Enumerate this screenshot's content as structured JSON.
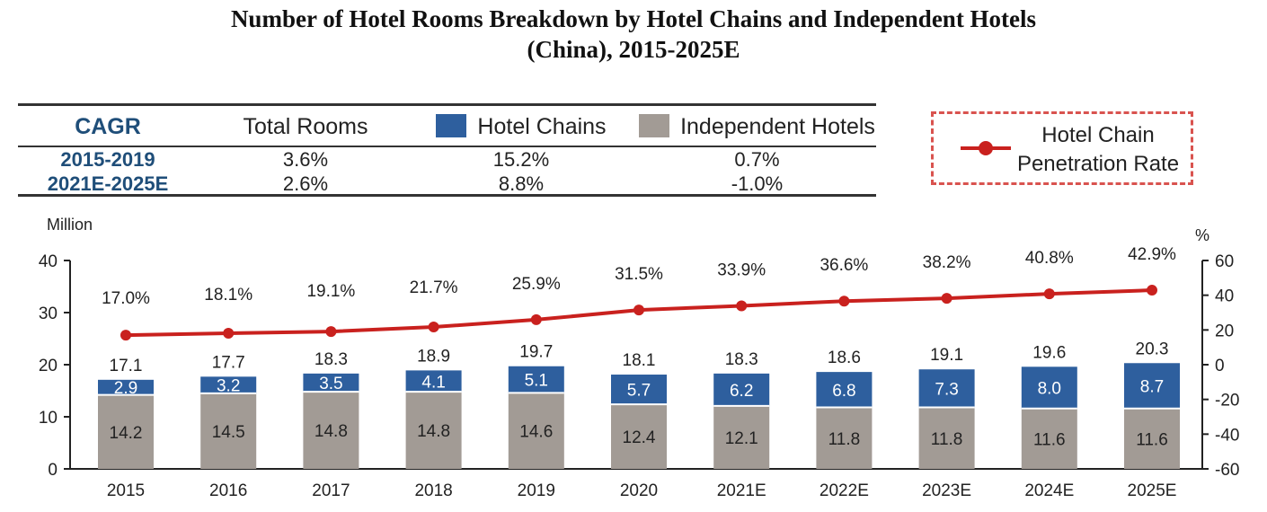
{
  "title_line1": "Number of Hotel Rooms Breakdown by Hotel Chains and Independent Hotels",
  "title_line2": "(China), 2015-2025E",
  "cagr_table": {
    "header": {
      "label": "CAGR",
      "total": "Total Rooms",
      "chains": "Hotel Chains",
      "independent": "Independent Hotels"
    },
    "rows": [
      {
        "period": "2015-2019",
        "total": "3.6%",
        "chains": "15.2%",
        "independent": "0.7%"
      },
      {
        "period": "2021E-2025E",
        "total": "2.6%",
        "chains": "8.8%",
        "independent": "-1.0%"
      }
    ]
  },
  "legend": {
    "penetration_line1": "Hotel Chain",
    "penetration_line2": "Penetration Rate"
  },
  "colors": {
    "chains": "#2e5f9e",
    "independent": "#a29b95",
    "penetration": "#c9211e",
    "axis": "#222222"
  },
  "chart_data": {
    "type": "bar",
    "stacked": true,
    "categories": [
      "2015",
      "2016",
      "2017",
      "2018",
      "2019",
      "2020",
      "2021E",
      "2022E",
      "2023E",
      "2024E",
      "2025E"
    ],
    "series": [
      {
        "name": "Independent Hotels",
        "values": [
          14.2,
          14.5,
          14.8,
          14.8,
          14.6,
          12.4,
          12.1,
          11.8,
          11.8,
          11.6,
          11.6
        ],
        "labels": [
          "14.2",
          "14.5",
          "14.8",
          "14.8",
          "14.6",
          "12.4",
          "12.1",
          "11.8",
          "11.8",
          "11.6",
          "11.6"
        ]
      },
      {
        "name": "Hotel Chains",
        "values": [
          2.9,
          3.2,
          3.5,
          4.1,
          5.1,
          5.7,
          6.2,
          6.8,
          7.3,
          8.0,
          8.7
        ],
        "labels": [
          "2.9",
          "3.2",
          "3.5",
          "4.1",
          "5.1",
          "5.7",
          "6.2",
          "6.8",
          "7.3",
          "8.0",
          "8.7"
        ]
      }
    ],
    "totals": [
      17.1,
      17.7,
      18.3,
      18.9,
      19.7,
      18.1,
      18.3,
      18.6,
      19.1,
      19.6,
      20.3
    ],
    "total_labels": [
      "17.1",
      "17.7",
      "18.3",
      "18.9",
      "19.7",
      "18.1",
      "18.3",
      "18.6",
      "19.1",
      "19.6",
      "20.3"
    ],
    "line": {
      "name": "Hotel Chain Penetration Rate",
      "values": [
        17.0,
        18.1,
        19.1,
        21.7,
        25.9,
        31.5,
        33.9,
        36.6,
        38.2,
        40.8,
        42.9
      ],
      "labels": [
        "17.0%",
        "18.1%",
        "19.1%",
        "21.7%",
        "25.9%",
        "31.5%",
        "33.9%",
        "36.6%",
        "38.2%",
        "40.8%",
        "42.9%"
      ]
    },
    "y_left": {
      "label": "Million",
      "min": 0,
      "max": 40,
      "ticks": [
        "0",
        "10",
        "20",
        "30",
        "40"
      ]
    },
    "y_right": {
      "label": "%",
      "min": -60,
      "max": 60,
      "ticks": [
        "-60",
        "-40",
        "-20",
        "0",
        "20",
        "40",
        "60"
      ]
    },
    "grid": false
  }
}
